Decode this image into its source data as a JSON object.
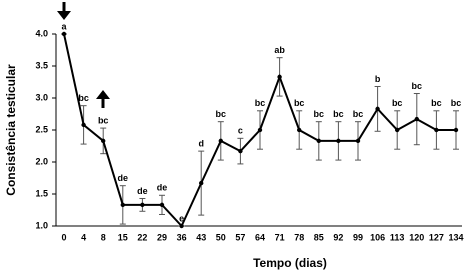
{
  "chart_data": {
    "type": "line",
    "x_label": "Tempo (dias)",
    "y_label": "Consistência testicular",
    "categories": [
      "0",
      "4",
      "8",
      "15",
      "22",
      "29",
      "36",
      "43",
      "50",
      "57",
      "64",
      "71",
      "78",
      "85",
      "92",
      "99",
      "106",
      "113",
      "120",
      "127",
      "134"
    ],
    "series": [
      {
        "color": "#000000",
        "values": [
          4.0,
          2.58,
          2.33,
          1.33,
          1.33,
          1.33,
          1.0,
          1.67,
          2.33,
          2.17,
          2.5,
          3.33,
          2.5,
          2.33,
          2.33,
          2.33,
          2.83,
          2.5,
          2.67,
          2.5,
          2.5
        ],
        "errors": [
          0,
          0.3,
          0.2,
          0.3,
          0.1,
          0.15,
          0,
          0.5,
          0.3,
          0.2,
          0.3,
          0.3,
          0.3,
          0.3,
          0.3,
          0.3,
          0.35,
          0.3,
          0.4,
          0.3,
          0.3
        ],
        "annotations": [
          "a",
          "bc",
          "bc",
          "de",
          "de",
          "de",
          "e",
          "d",
          "bc",
          "c",
          "bc",
          "ab",
          "bc",
          "bc",
          "bc",
          "bc",
          "b",
          "bc",
          "bc",
          "bc",
          "bc"
        ]
      }
    ],
    "ylim": [
      1.0,
      4.0
    ],
    "yticks": [
      {
        "value": 1.0,
        "label": "1.0"
      },
      {
        "value": 1.5,
        "label": "1.5"
      },
      {
        "value": 2.0,
        "label": "2.0"
      },
      {
        "value": 2.5,
        "label": "2.5"
      },
      {
        "value": 3.0,
        "label": "3.0"
      },
      {
        "value": 3.5,
        "label": "3.5"
      },
      {
        "value": 4.0,
        "label": "4.0"
      }
    ]
  }
}
